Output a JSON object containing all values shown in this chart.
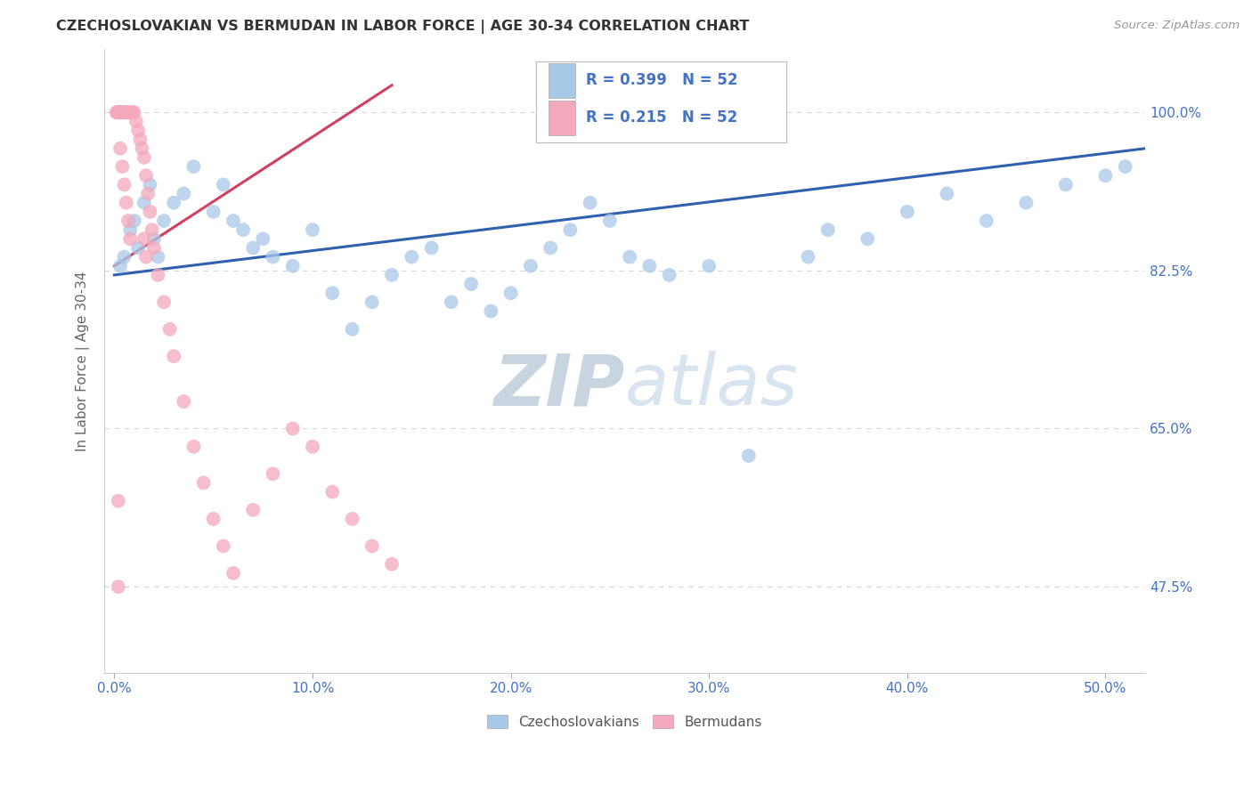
{
  "title": "CZECHOSLOVAKIAN VS BERMUDAN IN LABOR FORCE | AGE 30-34 CORRELATION CHART",
  "source": "Source: ZipAtlas.com",
  "ylabel_label": "In Labor Force | Age 30-34",
  "legend_labels": [
    "Czechoslovakians",
    "Bermudans"
  ],
  "R_czech": 0.399,
  "R_bermuda": 0.215,
  "N": 52,
  "scatter_color_czech": "#a8c8e8",
  "scatter_color_bermuda": "#f4a8bc",
  "trendline_color_czech": "#3060b0",
  "trendline_color_bermuda": "#d04060",
  "legend_box_color_czech": "#a8c8e8",
  "legend_box_color_bermuda": "#f4a8bc",
  "watermark": "ZIPatlas",
  "watermark_color": "#dde6f0",
  "background_color": "#ffffff",
  "grid_color": "#d8d8d8",
  "y_tick_vals": [
    47.5,
    65.0,
    82.5,
    100.0
  ],
  "x_tick_vals": [
    0.0,
    10.0,
    20.0,
    30.0,
    40.0,
    50.0
  ],
  "xmin": -0.5,
  "xmax": 52.0,
  "ymin": 38.0,
  "ymax": 107.0,
  "czech_x": [
    0.3,
    0.5,
    0.8,
    1.0,
    1.2,
    1.5,
    1.8,
    2.0,
    2.2,
    2.5,
    3.0,
    3.5,
    4.0,
    5.0,
    5.5,
    6.0,
    6.5,
    7.0,
    7.5,
    8.0,
    9.0,
    10.0,
    11.0,
    12.0,
    13.0,
    14.0,
    15.0,
    16.0,
    17.0,
    18.0,
    19.0,
    20.0,
    21.0,
    22.0,
    23.0,
    24.0,
    25.0,
    26.0,
    27.0,
    28.0,
    30.0,
    32.0,
    35.0,
    36.0,
    38.0,
    40.0,
    42.0,
    44.0,
    46.0,
    48.0,
    50.0,
    51.0
  ],
  "czech_y": [
    83.0,
    84.0,
    87.0,
    88.0,
    85.0,
    90.0,
    92.0,
    86.0,
    84.0,
    88.0,
    90.0,
    91.0,
    94.0,
    89.0,
    92.0,
    88.0,
    87.0,
    85.0,
    86.0,
    84.0,
    83.0,
    87.0,
    80.0,
    76.0,
    79.0,
    82.0,
    84.0,
    85.0,
    79.0,
    81.0,
    78.0,
    80.0,
    83.0,
    85.0,
    87.0,
    90.0,
    88.0,
    84.0,
    83.0,
    82.0,
    83.0,
    62.0,
    84.0,
    87.0,
    86.0,
    89.0,
    91.0,
    88.0,
    90.0,
    92.0,
    93.0,
    94.0
  ],
  "bermuda_x": [
    0.1,
    0.15,
    0.2,
    0.25,
    0.3,
    0.35,
    0.4,
    0.45,
    0.5,
    0.6,
    0.7,
    0.8,
    0.9,
    1.0,
    1.1,
    1.2,
    1.3,
    1.4,
    1.5,
    1.6,
    1.7,
    1.8,
    1.9,
    2.0,
    2.2,
    2.5,
    2.8,
    3.0,
    3.5,
    4.0,
    4.5,
    5.0,
    5.5,
    6.0,
    7.0,
    8.0,
    9.0,
    10.0,
    11.0,
    12.0,
    13.0,
    14.0,
    1.5,
    1.6,
    0.5,
    0.6,
    0.7,
    0.8,
    0.4,
    0.3,
    0.2,
    0.2
  ],
  "bermuda_y": [
    100.0,
    100.0,
    100.0,
    100.0,
    100.0,
    100.0,
    100.0,
    100.0,
    100.0,
    100.0,
    100.0,
    100.0,
    100.0,
    100.0,
    99.0,
    98.0,
    97.0,
    96.0,
    95.0,
    93.0,
    91.0,
    89.0,
    87.0,
    85.0,
    82.0,
    79.0,
    76.0,
    73.0,
    68.0,
    63.0,
    59.0,
    55.0,
    52.0,
    49.0,
    56.0,
    60.0,
    65.0,
    63.0,
    58.0,
    55.0,
    52.0,
    50.0,
    86.0,
    84.0,
    92.0,
    90.0,
    88.0,
    86.0,
    94.0,
    96.0,
    57.0,
    47.5
  ]
}
